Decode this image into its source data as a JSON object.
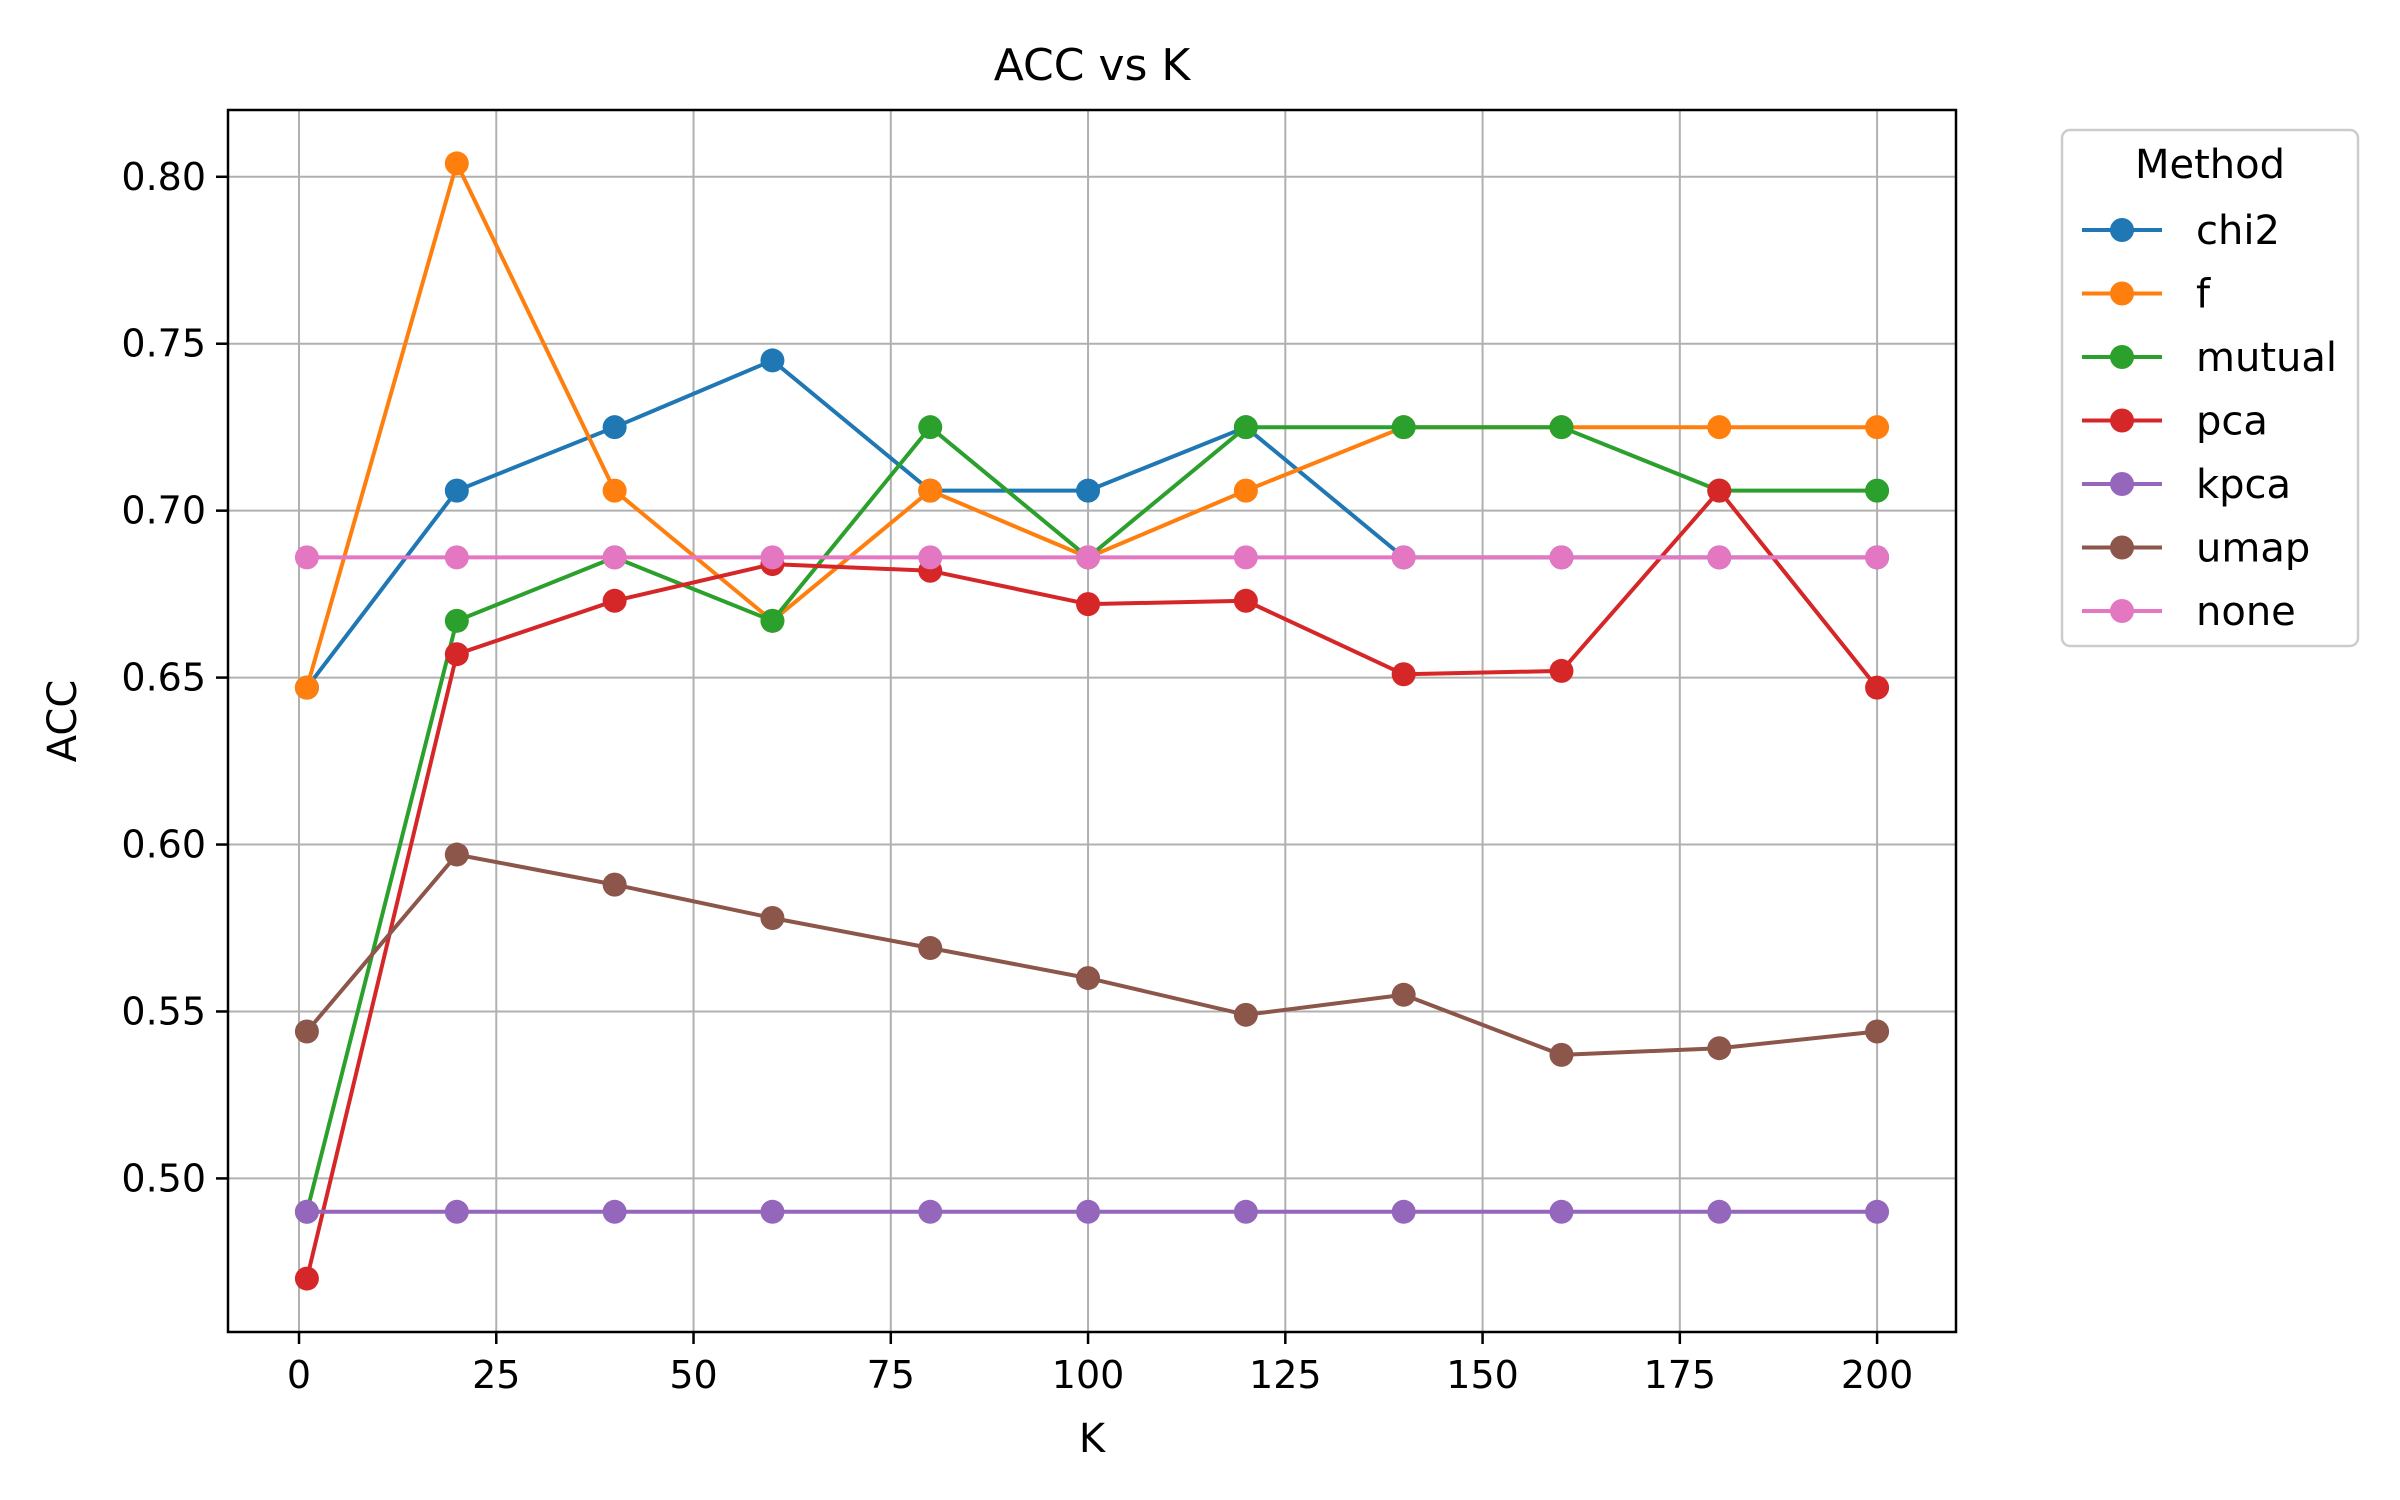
{
  "chart_data": {
    "type": "line",
    "title": "ACC vs K",
    "xlabel": "K",
    "ylabel": "ACC",
    "xlim": [
      -9,
      210
    ],
    "ylim": [
      0.454,
      0.82
    ],
    "xticks": [
      0,
      25,
      50,
      75,
      100,
      125,
      150,
      175,
      200
    ],
    "xtick_labels": [
      "0",
      "25",
      "50",
      "75",
      "100",
      "125",
      "150",
      "175",
      "200"
    ],
    "yticks": [
      0.5,
      0.55,
      0.6,
      0.65,
      0.7,
      0.75,
      0.8
    ],
    "ytick_labels": [
      "0.50",
      "0.55",
      "0.60",
      "0.65",
      "0.70",
      "0.75",
      "0.80"
    ],
    "grid": true,
    "legend_title": "Method",
    "legend_placement": "outside-top-right",
    "x": [
      1,
      20,
      40,
      60,
      80,
      100,
      120,
      140,
      160,
      180,
      200
    ],
    "series": [
      {
        "name": "chi2",
        "color": "#1f77b4",
        "values": [
          0.647,
          0.706,
          0.725,
          0.745,
          0.706,
          0.706,
          0.725,
          0.686,
          0.686,
          0.686,
          0.686
        ]
      },
      {
        "name": "f",
        "color": "#ff7f0e",
        "values": [
          0.647,
          0.804,
          0.706,
          0.667,
          0.706,
          0.686,
          0.706,
          0.725,
          0.725,
          0.725,
          0.725
        ]
      },
      {
        "name": "mutual",
        "color": "#2ca02c",
        "values": [
          0.49,
          0.667,
          0.686,
          0.667,
          0.725,
          0.686,
          0.725,
          0.725,
          0.725,
          0.706,
          0.706
        ]
      },
      {
        "name": "pca",
        "color": "#d62728",
        "values": [
          0.47,
          0.657,
          0.673,
          0.684,
          0.682,
          0.672,
          0.673,
          0.651,
          0.652,
          0.706,
          0.647
        ]
      },
      {
        "name": "kpca",
        "color": "#9467bd",
        "values": [
          0.49,
          0.49,
          0.49,
          0.49,
          0.49,
          0.49,
          0.49,
          0.49,
          0.49,
          0.49,
          0.49
        ]
      },
      {
        "name": "umap",
        "color": "#8c564b",
        "values": [
          0.544,
          0.597,
          0.588,
          0.578,
          0.569,
          0.56,
          0.549,
          0.555,
          0.537,
          0.539,
          0.544
        ]
      },
      {
        "name": "none",
        "color": "#e377c2",
        "values": [
          0.686,
          0.686,
          0.686,
          0.686,
          0.686,
          0.686,
          0.686,
          0.686,
          0.686,
          0.686,
          0.686
        ]
      }
    ]
  }
}
